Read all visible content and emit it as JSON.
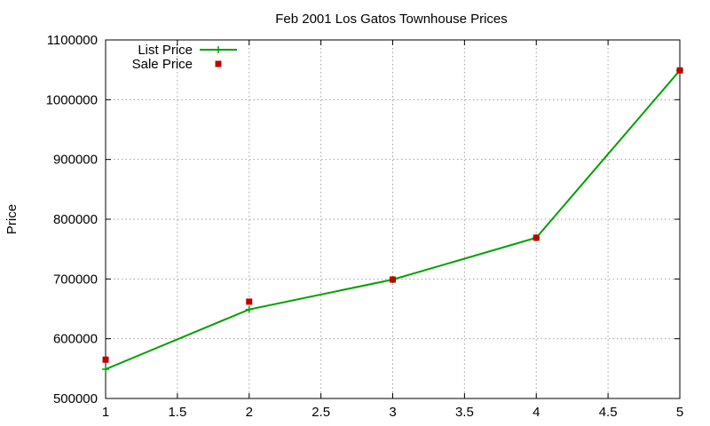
{
  "chart_data": {
    "type": "line",
    "title": "Feb 2001 Los Gatos Townhouse Prices",
    "xlabel": "",
    "ylabel": "Price",
    "xlim": [
      1,
      5
    ],
    "ylim": [
      500000,
      1100000
    ],
    "xticks": [
      1,
      1.5,
      2,
      2.5,
      3,
      3.5,
      4,
      4.5,
      5
    ],
    "xtick_labels": [
      "1",
      "1.5",
      "2",
      "2.5",
      "3",
      "3.5",
      "4",
      "4.5",
      "5"
    ],
    "yticks": [
      500000,
      600000,
      700000,
      800000,
      900000,
      1000000,
      1100000
    ],
    "ytick_labels": [
      "500000",
      "600000",
      "700000",
      "800000",
      "900000",
      "1000000",
      "1100000"
    ],
    "grid": true,
    "legend_position": "top-left",
    "series": [
      {
        "name": "List Price",
        "style": "line-with-plus-markers",
        "color": "#00a000",
        "x": [
          1,
          2,
          3,
          4,
          5
        ],
        "y": [
          549000,
          649000,
          699000,
          769000,
          1049000
        ]
      },
      {
        "name": "Sale Price",
        "style": "square-markers",
        "color": "#c00000",
        "x": [
          1,
          2,
          3,
          4,
          5
        ],
        "y": [
          565000,
          662000,
          699000,
          769000,
          1049000
        ]
      }
    ]
  }
}
